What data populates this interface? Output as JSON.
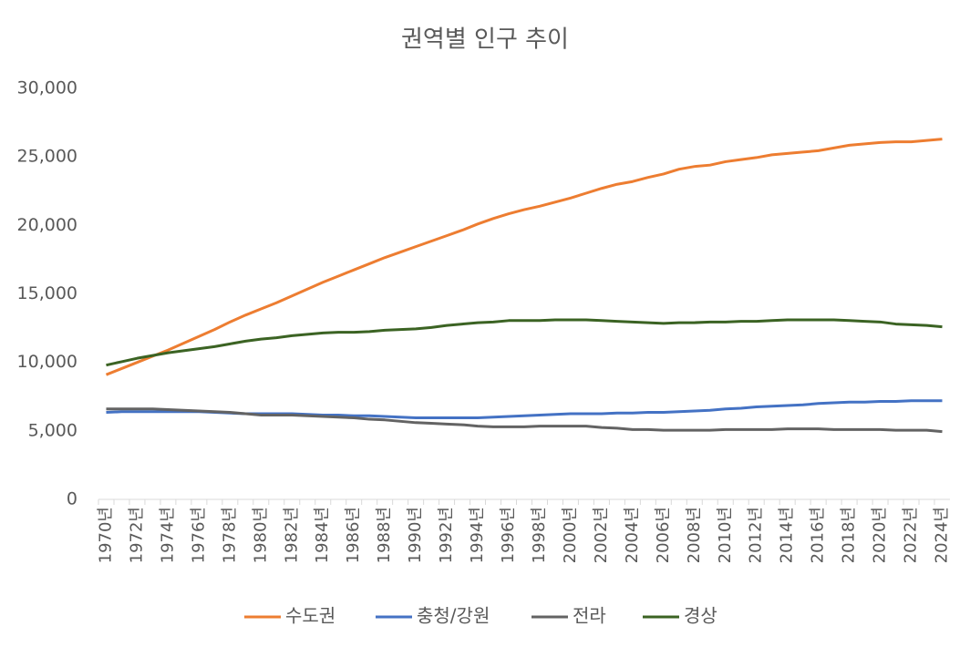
{
  "chart_data": {
    "type": "line",
    "title": "권역별 인구 추이",
    "categories": [
      "1970년",
      null,
      "1972년",
      null,
      "1974년",
      null,
      "1976년",
      null,
      "1978년",
      null,
      "1980년",
      null,
      "1982년",
      null,
      "1984년",
      null,
      "1986년",
      null,
      "1988년",
      null,
      "1990년",
      null,
      "1992년",
      null,
      "1994년",
      null,
      "1996년",
      null,
      "1998년",
      null,
      "2000년",
      null,
      "2002년",
      null,
      "2004년",
      null,
      "2006년",
      null,
      "2008년",
      null,
      "2010년",
      null,
      "2012년",
      null,
      "2014년",
      null,
      "2016년",
      null,
      "2018년",
      null,
      "2020년",
      null,
      "2022년",
      null,
      "2024년"
    ],
    "series": [
      {
        "name": "수도권",
        "color": "#ed7d31",
        "values": [
          9100,
          9550,
          10000,
          10450,
          10900,
          11400,
          11900,
          12400,
          12950,
          13450,
          13900,
          14350,
          14850,
          15350,
          15850,
          16300,
          16750,
          17200,
          17650,
          18050,
          18450,
          18850,
          19250,
          19650,
          20100,
          20500,
          20850,
          21150,
          21400,
          21700,
          22000,
          22350,
          22700,
          23000,
          23200,
          23500,
          23750,
          24100,
          24300,
          24400,
          24650,
          24800,
          24950,
          25150,
          25250,
          25350,
          25450,
          25650,
          25850,
          25950,
          26050,
          26100,
          26100,
          26200,
          26300
        ]
      },
      {
        "name": "충청/강원",
        "color": "#4472c4",
        "values": [
          6350,
          6400,
          6400,
          6400,
          6400,
          6400,
          6400,
          6350,
          6300,
          6250,
          6250,
          6250,
          6250,
          6200,
          6150,
          6150,
          6100,
          6100,
          6050,
          6000,
          5950,
          5950,
          5950,
          5950,
          5950,
          6000,
          6050,
          6100,
          6150,
          6200,
          6250,
          6250,
          6250,
          6300,
          6300,
          6350,
          6350,
          6400,
          6450,
          6500,
          6600,
          6650,
          6750,
          6800,
          6850,
          6900,
          7000,
          7050,
          7100,
          7100,
          7150,
          7150,
          7200,
          7200,
          7200
        ]
      },
      {
        "name": "전라",
        "color": "#636363",
        "values": [
          6600,
          6600,
          6600,
          6600,
          6550,
          6500,
          6450,
          6400,
          6350,
          6250,
          6150,
          6150,
          6150,
          6100,
          6050,
          6000,
          5950,
          5850,
          5800,
          5700,
          5600,
          5550,
          5500,
          5450,
          5350,
          5300,
          5300,
          5300,
          5350,
          5350,
          5350,
          5350,
          5250,
          5200,
          5100,
          5100,
          5050,
          5050,
          5050,
          5050,
          5100,
          5100,
          5100,
          5100,
          5150,
          5150,
          5150,
          5100,
          5100,
          5100,
          5100,
          5050,
          5050,
          5050,
          4950
        ]
      },
      {
        "name": "경상",
        "color": "#3b6323",
        "values": [
          9800,
          10050,
          10300,
          10500,
          10700,
          10850,
          11000,
          11150,
          11350,
          11550,
          11700,
          11800,
          11950,
          12050,
          12150,
          12200,
          12200,
          12250,
          12350,
          12400,
          12450,
          12550,
          12700,
          12800,
          12900,
          12950,
          13050,
          13050,
          13050,
          13100,
          13100,
          13100,
          13050,
          13000,
          12950,
          12900,
          12850,
          12900,
          12900,
          12950,
          12950,
          13000,
          13000,
          13050,
          13100,
          13100,
          13100,
          13100,
          13050,
          13000,
          12950,
          12800,
          12750,
          12700,
          12600
        ]
      }
    ],
    "ylim": [
      0,
      30000
    ],
    "yticks": [
      0,
      {
        "value": 5000,
        "label": "5,000"
      },
      {
        "value": 10000,
        "label": "10,000"
      },
      {
        "value": 15000,
        "label": "15,000"
      },
      {
        "value": 20000,
        "label": "20,000"
      },
      {
        "value": 25000,
        "label": "25,000"
      },
      {
        "value": 30000,
        "label": "30,000"
      }
    ],
    "grid": false,
    "legend": "bottom"
  }
}
